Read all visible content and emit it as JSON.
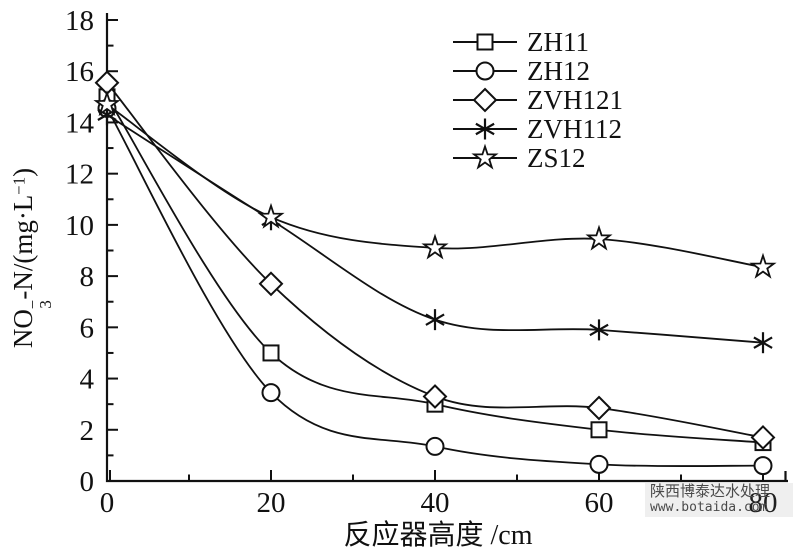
{
  "figure": {
    "background": "#ffffff",
    "line_color": "#111111",
    "text_color": "#111111",
    "watermark": {
      "line1": "陕西博泰达水处理",
      "line2": "www.botaida.com"
    }
  },
  "chart_data": {
    "type": "line",
    "title": "",
    "xlabel": "反应器高度 /cm",
    "ylabel": "NO3−-N/(mg·L−1)",
    "ylabel_parts": [
      {
        "text": "NO"
      },
      {
        "stack": {
          "sup": "−",
          "sub": "3"
        }
      },
      {
        "text": "-N/(mg·L"
      },
      {
        "text": "−1",
        "style": "sup"
      },
      {
        "text": ")"
      }
    ],
    "xlim": [
      0,
      80
    ],
    "ylim": [
      0,
      18
    ],
    "x_major_ticks": [
      0,
      20,
      40,
      60,
      80
    ],
    "x_minor_ticks": [
      10,
      30,
      50,
      70
    ],
    "y_major_ticks": [
      0,
      2,
      4,
      6,
      8,
      10,
      12,
      14,
      16,
      18
    ],
    "y_minor_ticks": [
      1,
      3,
      5,
      7,
      9,
      11,
      13,
      15,
      17
    ],
    "grid": false,
    "legend_position": "upper-right-inside",
    "x": [
      0,
      20,
      40,
      60,
      80
    ],
    "series": [
      {
        "name": "ZH11",
        "marker": "square",
        "values": [
          15.0,
          5.0,
          3.0,
          2.0,
          1.5
        ]
      },
      {
        "name": "ZH12",
        "marker": "circle",
        "values": [
          14.55,
          3.45,
          1.35,
          0.65,
          0.6
        ]
      },
      {
        "name": "ZVH121",
        "marker": "diamond",
        "values": [
          15.55,
          7.7,
          3.3,
          2.85,
          1.7
        ]
      },
      {
        "name": "ZVH112",
        "marker": "asterisk",
        "values": [
          14.3,
          10.2,
          6.3,
          5.9,
          5.4
        ]
      },
      {
        "name": "ZS12",
        "marker": "star",
        "values": [
          14.7,
          10.3,
          9.1,
          9.45,
          8.35
        ]
      }
    ]
  }
}
